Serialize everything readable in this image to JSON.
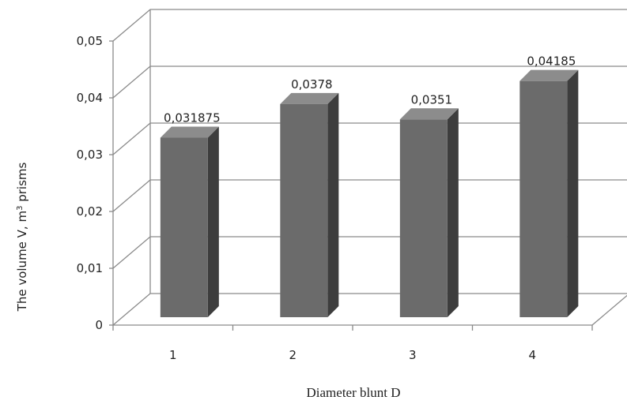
{
  "chart_data": {
    "type": "bar",
    "categories": [
      "1",
      "2",
      "3",
      "4"
    ],
    "values": [
      0.031875,
      0.0378,
      0.0351,
      0.04185
    ],
    "data_labels": [
      "0,031875",
      "0,0378",
      "0,0351",
      "0,04185"
    ],
    "yticks": [
      0,
      0.01,
      0.02,
      0.03,
      0.04,
      0.05
    ],
    "ytick_labels": [
      "0",
      "0,01",
      "0,02",
      "0,03",
      "0,04",
      "0,05"
    ],
    "ylim": [
      0,
      0.05
    ],
    "xlabel": "Diameter blunt D",
    "ylabel": {
      "before": "The volume V, m",
      "sup": "3",
      "after": " prisms"
    },
    "grid": true,
    "three_d": true,
    "colors": {
      "bar_front": "#6b6b6b",
      "bar_side": "#3d3d3d",
      "bar_top": "#8c8c8c",
      "grid": "#8a8a8a"
    }
  }
}
